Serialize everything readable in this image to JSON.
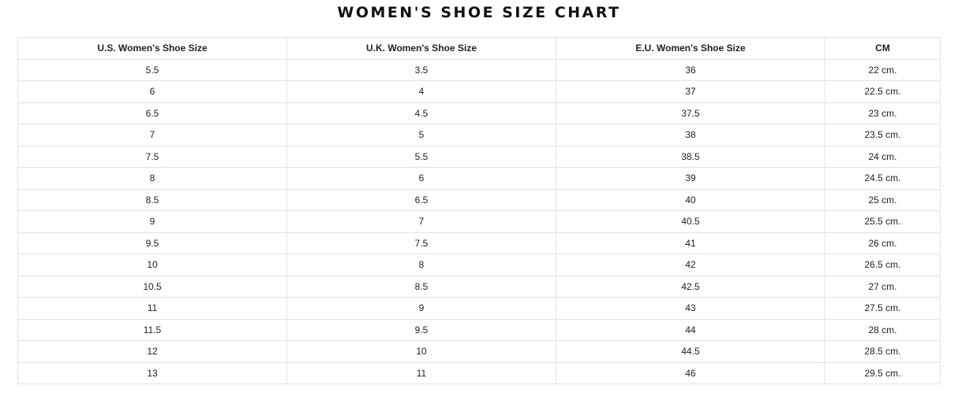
{
  "title": "WOMEN'S SHOE SIZE CHART",
  "headers": [
    "U.S. Women's Shoe Size",
    "U.K. Women's Shoe Size",
    "E.U. Women's Shoe Size",
    "CM"
  ],
  "rows": [
    [
      "5.5",
      "3.5",
      "36",
      "22 cm."
    ],
    [
      "6",
      "4",
      "37",
      "22.5 cm."
    ],
    [
      "6.5",
      "4.5",
      "37.5",
      "23 cm."
    ],
    [
      "7",
      "5",
      "38",
      "23.5 cm."
    ],
    [
      "7.5",
      "5.5",
      "38.5",
      "24 cm."
    ],
    [
      "8",
      "6",
      "39",
      "24.5 cm."
    ],
    [
      "8.5",
      "6.5",
      "40",
      "25 cm."
    ],
    [
      "9",
      "7",
      "40.5",
      "25.5 cm."
    ],
    [
      "9.5",
      "7.5",
      "41",
      "26 cm."
    ],
    [
      "10",
      "8",
      "42",
      "26.5 cm."
    ],
    [
      "10.5",
      "8.5",
      "42.5",
      "27 cm."
    ],
    [
      "11",
      "9",
      "43",
      "27.5 cm."
    ],
    [
      "11.5",
      "9.5",
      "44",
      "28 cm."
    ],
    [
      "12",
      "10",
      "44.5",
      "28.5 cm."
    ],
    [
      "13",
      "11",
      "46",
      "29.5 cm."
    ]
  ]
}
